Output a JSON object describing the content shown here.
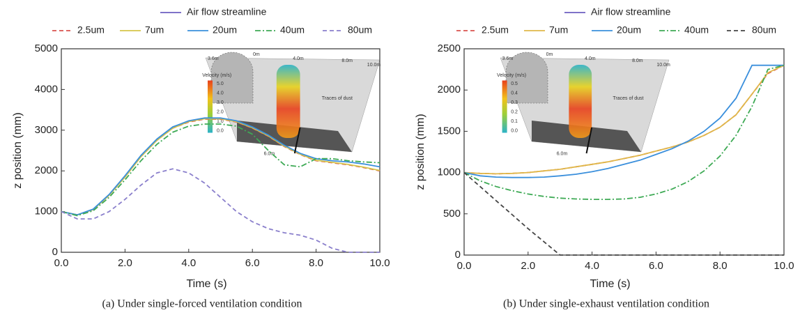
{
  "chart_data": [
    {
      "type": "line",
      "caption": "(a) Under single-forced ventilation condition",
      "xlabel": "Time (s)",
      "ylabel": "z position (mm)",
      "streamline_label": "Air flow streamline",
      "streamline_color": "#7f73c8",
      "x": [
        0,
        0.5,
        1,
        1.5,
        2,
        2.5,
        3,
        3.5,
        4,
        4.5,
        5,
        5.5,
        6,
        6.5,
        7,
        7.5,
        8,
        8.5,
        9,
        9.5,
        10
      ],
      "xlim": [
        0,
        10
      ],
      "ylim": [
        0,
        5000
      ],
      "xticks": [
        {
          "value": 0,
          "label": "0.0"
        },
        {
          "value": 2,
          "label": "2.0"
        },
        {
          "value": 4,
          "label": "4.0"
        },
        {
          "value": 6,
          "label": "6.0"
        },
        {
          "value": 8,
          "label": "8.0"
        },
        {
          "value": 10,
          "label": "10.0"
        }
      ],
      "yticks": [
        0,
        1000,
        2000,
        3000,
        4000,
        5000
      ],
      "series": [
        {
          "name": "2.5um",
          "color": "#d9534f",
          "dash": "dashed",
          "values": [
            1000,
            920,
            1050,
            1400,
            1850,
            2350,
            2750,
            3050,
            3200,
            3270,
            3270,
            3200,
            3050,
            2850,
            2600,
            2400,
            2250,
            2200,
            2150,
            2080,
            2000
          ]
        },
        {
          "name": "7um",
          "color": "#d6c54a",
          "dash": "solid",
          "values": [
            1000,
            920,
            1050,
            1400,
            1850,
            2350,
            2750,
            3050,
            3210,
            3280,
            3280,
            3210,
            3060,
            2860,
            2610,
            2410,
            2260,
            2210,
            2160,
            2090,
            2010
          ]
        },
        {
          "name": "20um",
          "color": "#3a8fdc",
          "dash": "solid",
          "values": [
            1000,
            920,
            1060,
            1420,
            1880,
            2380,
            2780,
            3080,
            3230,
            3300,
            3300,
            3230,
            3080,
            2880,
            2630,
            2430,
            2300,
            2250,
            2220,
            2170,
            2100
          ]
        },
        {
          "name": "40um",
          "color": "#3eaa55",
          "dash": "dashdot",
          "values": [
            1000,
            900,
            1020,
            1350,
            1780,
            2250,
            2650,
            2950,
            3100,
            3150,
            3150,
            3100,
            2900,
            2500,
            2150,
            2100,
            2300,
            2300,
            2250,
            2220,
            2200
          ]
        },
        {
          "name": "80um",
          "color": "#8a7fcc",
          "dash": "dashed",
          "values": [
            1000,
            820,
            820,
            1000,
            1300,
            1650,
            1950,
            2050,
            1950,
            1700,
            1350,
            1000,
            750,
            580,
            480,
            420,
            300,
            100,
            0,
            0,
            0
          ]
        }
      ],
      "inset": {
        "labels": [
          "3.6m",
          "0m",
          "4.0m",
          "8.0m",
          "10.0m",
          "Velocity (m/s)",
          "5.0",
          "4.0",
          "3.0",
          "2.0",
          "1.0",
          "0.0",
          "Traces of dust",
          "6.0m"
        ]
      }
    },
    {
      "type": "line",
      "caption": "(b) Under single-exhaust ventilation condition",
      "xlabel": "Time (s)",
      "ylabel": "z position (mm)",
      "streamline_label": "Air flow streamline",
      "streamline_color": "#7f73c8",
      "x": [
        0,
        0.5,
        1,
        1.5,
        2,
        2.5,
        3,
        3.5,
        4,
        4.5,
        5,
        5.5,
        6,
        6.5,
        7,
        7.5,
        8,
        8.5,
        9,
        9.5,
        10
      ],
      "xlim": [
        0,
        10
      ],
      "ylim": [
        0,
        2500
      ],
      "xticks": [
        {
          "value": 0,
          "label": "0.0"
        },
        {
          "value": 2,
          "label": "2.0"
        },
        {
          "value": 4,
          "label": "4.0"
        },
        {
          "value": 6,
          "label": "6.0"
        },
        {
          "value": 8,
          "label": "8.0"
        },
        {
          "value": 10,
          "label": "10.0"
        }
      ],
      "yticks": [
        0,
        500,
        1000,
        1500,
        2000,
        2500
      ],
      "series": [
        {
          "name": "2.5um",
          "color": "#d9534f",
          "dash": "dashed",
          "values": [
            1000,
            990,
            985,
            990,
            1000,
            1020,
            1040,
            1070,
            1100,
            1130,
            1170,
            1210,
            1260,
            1310,
            1370,
            1450,
            1550,
            1700,
            1950,
            2200,
            2300
          ]
        },
        {
          "name": "7um",
          "color": "#e0b84a",
          "dash": "solid",
          "values": [
            1000,
            990,
            985,
            990,
            1000,
            1020,
            1040,
            1070,
            1100,
            1130,
            1170,
            1210,
            1260,
            1310,
            1370,
            1450,
            1550,
            1700,
            1950,
            2210,
            2300
          ]
        },
        {
          "name": "20um",
          "color": "#3a8fdc",
          "dash": "solid",
          "values": [
            1000,
            960,
            945,
            940,
            940,
            945,
            960,
            980,
            1010,
            1050,
            1100,
            1150,
            1220,
            1290,
            1380,
            1500,
            1660,
            1900,
            2300,
            2300,
            2300
          ]
        },
        {
          "name": "40um",
          "color": "#3eaa55",
          "dash": "dashdot",
          "values": [
            1000,
            900,
            830,
            780,
            740,
            710,
            690,
            680,
            675,
            675,
            680,
            700,
            740,
            800,
            890,
            1020,
            1200,
            1450,
            1800,
            2250,
            2300
          ]
        },
        {
          "name": "80um",
          "color": "#444444",
          "dash": "dashed",
          "values": [
            1000,
            830,
            660,
            490,
            320,
            160,
            0,
            0,
            0,
            0,
            0,
            0,
            0,
            0,
            0,
            0,
            0,
            0,
            0,
            0,
            0
          ]
        }
      ],
      "inset": {
        "labels": [
          "3.6m",
          "0m",
          "4.0m",
          "8.0m",
          "10.0m",
          "Velocity (m/s)",
          "0.5",
          "0.4",
          "0.3",
          "0.2",
          "0.1",
          "0.0",
          "Traces of dust",
          "6.0m"
        ]
      }
    }
  ]
}
